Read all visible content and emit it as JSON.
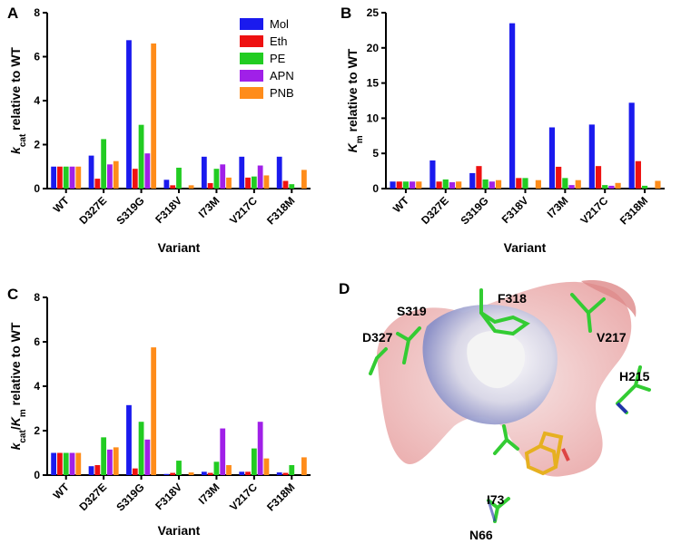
{
  "chart_data": [
    {
      "type": "bar",
      "panel": "A",
      "ylabel_parts": [
        {
          "text": "k",
          "style": "italic"
        },
        {
          "text": "cat",
          "style": "sub"
        },
        {
          "text": " relative to WT",
          "style": "normal"
        }
      ],
      "xlabel": "Variant",
      "categories": [
        "WT",
        "D327E",
        "S319G",
        "F318V",
        "I73M",
        "V217C",
        "F318M"
      ],
      "ylim": [
        0,
        8
      ],
      "yticks": [
        0,
        2,
        4,
        6,
        8
      ],
      "legend": "top-right",
      "series": [
        {
          "name": "Mol",
          "color": "#1a1aee",
          "values": [
            1,
            1.5,
            6.75,
            0.4,
            1.45,
            1.45,
            1.45
          ]
        },
        {
          "name": "Eth",
          "color": "#ee1111",
          "values": [
            1,
            0.45,
            0.9,
            0.15,
            0.25,
            0.5,
            0.35
          ]
        },
        {
          "name": "PE",
          "color": "#22cc22",
          "values": [
            1,
            2.25,
            2.9,
            0.95,
            0.9,
            0.55,
            0.2
          ]
        },
        {
          "name": "APN",
          "color": "#a020e8",
          "values": [
            1,
            1.1,
            1.6,
            0,
            1.1,
            1.05,
            0
          ]
        },
        {
          "name": "PNB",
          "color": "#ff8c1a",
          "values": [
            1,
            1.25,
            6.6,
            0.15,
            0.5,
            0.6,
            0.85
          ]
        }
      ]
    },
    {
      "type": "bar",
      "panel": "B",
      "ylabel_parts": [
        {
          "text": "K",
          "style": "italic"
        },
        {
          "text": "m",
          "style": "sub"
        },
        {
          "text": " relative to  WT",
          "style": "normal"
        }
      ],
      "xlabel": "Variant",
      "categories": [
        "WT",
        "D327E",
        "S319G",
        "F318V",
        "I73M",
        "V217C",
        "F318M"
      ],
      "ylim": [
        0,
        25
      ],
      "yticks": [
        0,
        5,
        10,
        15,
        20,
        25
      ],
      "series": [
        {
          "name": "Mol",
          "color": "#1a1aee",
          "values": [
            1,
            4,
            2.2,
            23.5,
            8.7,
            9.1,
            12.2
          ]
        },
        {
          "name": "Eth",
          "color": "#ee1111",
          "values": [
            1,
            1,
            3.2,
            1.5,
            3.1,
            3.2,
            3.9
          ]
        },
        {
          "name": "PE",
          "color": "#22cc22",
          "values": [
            1,
            1.3,
            1.3,
            1.5,
            1.5,
            0.5,
            0.4
          ]
        },
        {
          "name": "APN",
          "color": "#a020e8",
          "values": [
            1,
            0.9,
            1,
            0,
            0.5,
            0.4,
            0
          ]
        },
        {
          "name": "PNB",
          "color": "#ff8c1a",
          "values": [
            1,
            1,
            1.2,
            1.2,
            1.2,
            0.8,
            1.1
          ]
        }
      ]
    },
    {
      "type": "bar",
      "panel": "C",
      "ylabel_parts": [
        {
          "text": "k",
          "style": "italic"
        },
        {
          "text": "cat",
          "style": "sub"
        },
        {
          "text": "/",
          "style": "normal"
        },
        {
          "text": "K",
          "style": "italic"
        },
        {
          "text": "m",
          "style": "sub"
        },
        {
          "text": " relative to WT",
          "style": "normal"
        }
      ],
      "xlabel": "Variant",
      "categories": [
        "WT",
        "D327E",
        "S319G",
        "F318V",
        "I73M",
        "V217C",
        "F318M"
      ],
      "ylim": [
        0,
        8
      ],
      "yticks": [
        0,
        2,
        4,
        6,
        8
      ],
      "series": [
        {
          "name": "Mol",
          "color": "#1a1aee",
          "values": [
            1,
            0.4,
            3.15,
            0.05,
            0.15,
            0.15,
            0.12
          ]
        },
        {
          "name": "Eth",
          "color": "#ee1111",
          "values": [
            1,
            0.45,
            0.3,
            0.1,
            0.1,
            0.15,
            0.1
          ]
        },
        {
          "name": "PE",
          "color": "#22cc22",
          "values": [
            1,
            1.7,
            2.4,
            0.65,
            0.6,
            1.2,
            0.45
          ]
        },
        {
          "name": "APN",
          "color": "#a020e8",
          "values": [
            1,
            1.15,
            1.6,
            0,
            2.1,
            2.4,
            0
          ]
        },
        {
          "name": "PNB",
          "color": "#ff8c1a",
          "values": [
            1,
            1.25,
            5.75,
            0.12,
            0.45,
            0.75,
            0.8
          ]
        }
      ]
    }
  ],
  "panel_d": {
    "letter": "D",
    "labels": [
      "S319",
      "D327",
      "F318",
      "V217",
      "H215",
      "I73",
      "N66"
    ]
  }
}
